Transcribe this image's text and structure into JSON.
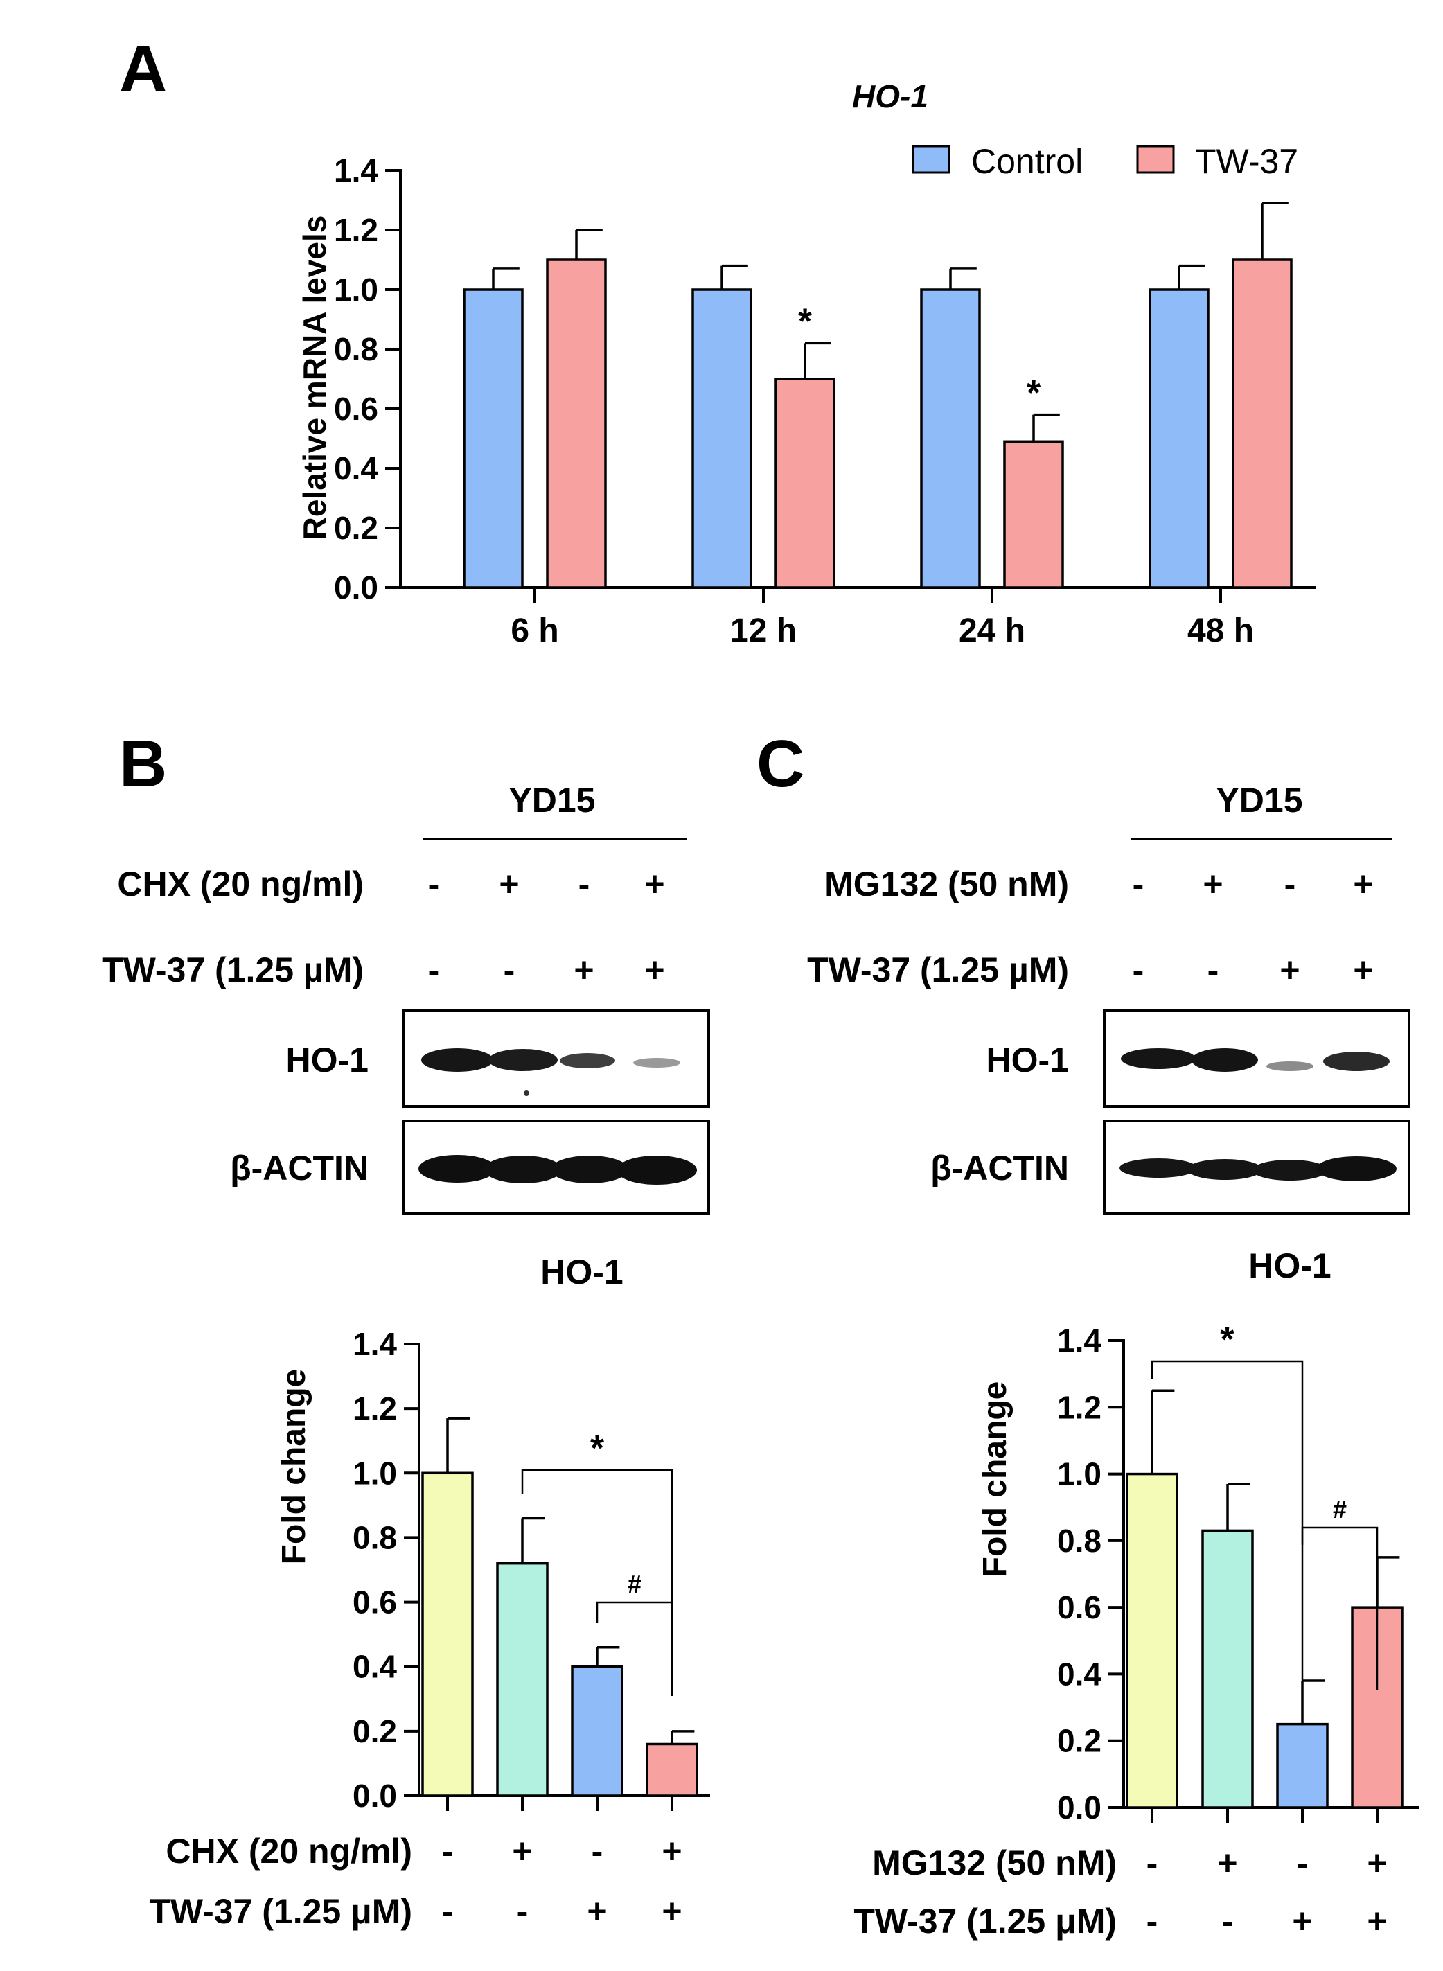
{
  "panels": {
    "A": {
      "letter": "A",
      "title": "HO-1",
      "ylabel": "Relative mRNA levels",
      "legend": [
        "Control",
        "TW-37"
      ]
    },
    "B": {
      "letter": "B",
      "cell_line": "YD15",
      "conditions": [
        {
          "label": "CHX (20 ng/ml)",
          "signs": [
            "-",
            "+",
            "-",
            "+"
          ]
        },
        {
          "label": "TW-37 (1.25 µM)",
          "signs": [
            "-",
            "-",
            "+",
            "+"
          ]
        }
      ],
      "blots": [
        "HO-1",
        "β-ACTIN"
      ],
      "chart_title": "HO-1",
      "ylabel": "Fold change",
      "xconditions": [
        {
          "label": "CHX (20 ng/ml)",
          "signs": [
            "-",
            "+",
            "-",
            "+"
          ]
        },
        {
          "label": "TW-37 (1.25 μM)",
          "signs": [
            "-",
            "-",
            "+",
            "+"
          ]
        }
      ]
    },
    "C": {
      "letter": "C",
      "cell_line": "YD15",
      "conditions": [
        {
          "label": "MG132 (50 nM)",
          "signs": [
            "-",
            "+",
            "-",
            "+"
          ]
        },
        {
          "label": "TW-37 (1.25 µM)",
          "signs": [
            "-",
            "-",
            "+",
            "+"
          ]
        }
      ],
      "blots": [
        "HO-1",
        "β-ACTIN"
      ],
      "chart_title": "HO-1",
      "ylabel": "Fold change",
      "xconditions": [
        {
          "label": "MG132 (50 nM)",
          "signs": [
            "-",
            "+",
            "-",
            "+"
          ]
        },
        {
          "label": "TW-37 (1.25 μM)",
          "signs": [
            "-",
            "-",
            "+",
            "+"
          ]
        }
      ]
    }
  },
  "colors": {
    "control": "#8fbcf8",
    "tw37": "#f8a1a1",
    "yellow": "#f3fbb6",
    "teal": "#b2f1df",
    "blue": "#8fbcf8",
    "red": "#f8a1a1"
  },
  "chart_data": [
    {
      "type": "bar",
      "title": "HO-1",
      "ylabel": "Relative mRNA levels",
      "categories": [
        "6 h",
        "12 h",
        "24 h",
        "48 h"
      ],
      "series": [
        {
          "name": "Control",
          "values": [
            1.0,
            1.0,
            1.0,
            1.0
          ],
          "errors": [
            0.07,
            0.08,
            0.07,
            0.08
          ]
        },
        {
          "name": "TW-37",
          "values": [
            1.1,
            0.7,
            0.49,
            1.1
          ],
          "errors": [
            0.1,
            0.12,
            0.09,
            0.19
          ]
        }
      ],
      "significance": [
        "",
        "*",
        "*",
        ""
      ],
      "ylim": [
        0,
        1.4
      ],
      "yticks": [
        "0.0",
        "0.2",
        "0.4",
        "0.6",
        "0.8",
        "1.0",
        "1.2",
        "1.4"
      ],
      "legend": "top-right"
    },
    {
      "type": "bar",
      "title": "HO-1",
      "ylabel": "Fold change",
      "values": [
        1.0,
        0.72,
        0.4,
        0.16
      ],
      "errors": [
        0.17,
        0.14,
        0.06,
        0.04
      ],
      "ylim": [
        0,
        1.4
      ],
      "yticks": [
        "0.0",
        "0.2",
        "0.4",
        "0.6",
        "0.8",
        "1.0",
        "1.2",
        "1.4"
      ],
      "annotations": [
        {
          "from": 2,
          "to": 4,
          "label": "*"
        },
        {
          "from": 3,
          "to": 4,
          "label": "#"
        }
      ]
    },
    {
      "type": "bar",
      "title": "HO-1",
      "ylabel": "Fold change",
      "values": [
        1.0,
        0.83,
        0.25,
        0.6
      ],
      "errors": [
        0.25,
        0.14,
        0.13,
        0.15
      ],
      "ylim": [
        0,
        1.4
      ],
      "yticks": [
        "0.0",
        "0.2",
        "0.4",
        "0.6",
        "0.8",
        "1.0",
        "1.2",
        "1.4"
      ],
      "annotations": [
        {
          "from": 1,
          "to": 3,
          "label": "*"
        },
        {
          "from": 3,
          "to": 4,
          "label": "#"
        }
      ]
    }
  ]
}
